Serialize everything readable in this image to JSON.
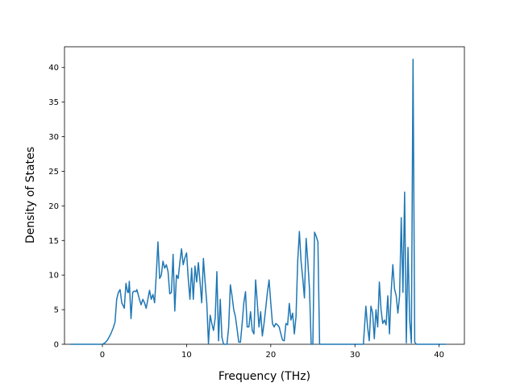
{
  "chart_data": {
    "type": "line",
    "title": "",
    "xlabel": "Frequency (THz)",
    "ylabel": "Density of States",
    "xlim": [
      -4.5,
      43
    ],
    "ylim": [
      0,
      43
    ],
    "x_ticks": [
      0,
      10,
      20,
      30,
      40
    ],
    "y_ticks": [
      0,
      5,
      10,
      15,
      20,
      25,
      30,
      35,
      40
    ],
    "grid": false,
    "legend": "none",
    "series": [
      {
        "color": "#1f77b4",
        "points": [
          [
            -3.8,
            0
          ],
          [
            0.0,
            0
          ],
          [
            0.3,
            0.2
          ],
          [
            0.6,
            0.6
          ],
          [
            1.0,
            1.5
          ],
          [
            1.3,
            2.4
          ],
          [
            1.5,
            3.2
          ],
          [
            1.7,
            6.5
          ],
          [
            1.9,
            7.5
          ],
          [
            2.1,
            7.9
          ],
          [
            2.3,
            6.0
          ],
          [
            2.5,
            5.5
          ],
          [
            2.6,
            5.2
          ],
          [
            2.8,
            8.8
          ],
          [
            3.0,
            7.5
          ],
          [
            3.1,
            7.5
          ],
          [
            3.2,
            9.1
          ],
          [
            3.4,
            3.7
          ],
          [
            3.6,
            7.5
          ],
          [
            3.8,
            7.7
          ],
          [
            4.0,
            7.6
          ],
          [
            4.1,
            7.9
          ],
          [
            4.4,
            6.5
          ],
          [
            4.6,
            5.7
          ],
          [
            4.8,
            6.5
          ],
          [
            5.0,
            6.0
          ],
          [
            5.2,
            5.2
          ],
          [
            5.4,
            6.5
          ],
          [
            5.6,
            7.8
          ],
          [
            5.8,
            6.5
          ],
          [
            6.0,
            7.2
          ],
          [
            6.2,
            6.0
          ],
          [
            6.4,
            10.0
          ],
          [
            6.6,
            14.8
          ],
          [
            6.8,
            9.5
          ],
          [
            7.0,
            10.0
          ],
          [
            7.2,
            12.0
          ],
          [
            7.4,
            11.0
          ],
          [
            7.6,
            11.5
          ],
          [
            7.8,
            10.5
          ],
          [
            8.0,
            7.3
          ],
          [
            8.2,
            7.5
          ],
          [
            8.4,
            13.0
          ],
          [
            8.6,
            4.8
          ],
          [
            8.8,
            10.0
          ],
          [
            9.0,
            9.5
          ],
          [
            9.2,
            11.8
          ],
          [
            9.4,
            13.8
          ],
          [
            9.6,
            11.5
          ],
          [
            9.8,
            12.5
          ],
          [
            10.0,
            13.2
          ],
          [
            10.2,
            9.5
          ],
          [
            10.4,
            6.5
          ],
          [
            10.6,
            11.0
          ],
          [
            10.8,
            6.5
          ],
          [
            11.0,
            11.3
          ],
          [
            11.2,
            9.0
          ],
          [
            11.4,
            11.8
          ],
          [
            11.6,
            9.0
          ],
          [
            11.8,
            6.0
          ],
          [
            12.0,
            12.4
          ],
          [
            12.2,
            9.0
          ],
          [
            12.4,
            6.0
          ],
          [
            12.6,
            0.1
          ],
          [
            12.8,
            4.2
          ],
          [
            13.0,
            3.0
          ],
          [
            13.2,
            2.0
          ],
          [
            13.4,
            3.8
          ],
          [
            13.6,
            10.5
          ],
          [
            13.8,
            0.5
          ],
          [
            14.0,
            6.5
          ],
          [
            14.2,
            1.0
          ],
          [
            14.4,
            0
          ],
          [
            14.8,
            0
          ],
          [
            15.0,
            2.5
          ],
          [
            15.2,
            8.6
          ],
          [
            15.4,
            7.0
          ],
          [
            15.6,
            5.0
          ],
          [
            15.8,
            4.0
          ],
          [
            16.0,
            2.2
          ],
          [
            16.2,
            0.3
          ],
          [
            16.4,
            0.3
          ],
          [
            16.6,
            3.0
          ],
          [
            16.8,
            6.0
          ],
          [
            17.0,
            7.6
          ],
          [
            17.2,
            2.5
          ],
          [
            17.4,
            2.5
          ],
          [
            17.6,
            4.7
          ],
          [
            17.8,
            2.0
          ],
          [
            18.0,
            1.5
          ],
          [
            18.2,
            9.3
          ],
          [
            18.4,
            6.0
          ],
          [
            18.6,
            2.5
          ],
          [
            18.8,
            4.7
          ],
          [
            19.0,
            1.2
          ],
          [
            19.2,
            3.0
          ],
          [
            19.4,
            5.2
          ],
          [
            19.6,
            7.5
          ],
          [
            19.8,
            9.3
          ],
          [
            20.0,
            6.0
          ],
          [
            20.2,
            3.0
          ],
          [
            20.4,
            2.5
          ],
          [
            20.6,
            3.0
          ],
          [
            20.8,
            2.8
          ],
          [
            21.0,
            2.5
          ],
          [
            21.2,
            1.5
          ],
          [
            21.4,
            0.6
          ],
          [
            21.6,
            0.5
          ],
          [
            21.8,
            3.0
          ],
          [
            22.0,
            2.8
          ],
          [
            22.2,
            5.9
          ],
          [
            22.4,
            3.5
          ],
          [
            22.6,
            4.5
          ],
          [
            22.8,
            1.5
          ],
          [
            23.0,
            4.0
          ],
          [
            23.2,
            12.0
          ],
          [
            23.4,
            16.3
          ],
          [
            23.6,
            12.0
          ],
          [
            23.8,
            9.5
          ],
          [
            24.0,
            6.7
          ],
          [
            24.2,
            15.3
          ],
          [
            24.4,
            12.0
          ],
          [
            24.6,
            8.0
          ],
          [
            24.8,
            0
          ],
          [
            25.0,
            0
          ],
          [
            25.2,
            16.2
          ],
          [
            25.4,
            15.6
          ],
          [
            25.6,
            14.8
          ],
          [
            25.8,
            0
          ],
          [
            31.0,
            0
          ],
          [
            31.3,
            5.5
          ],
          [
            31.5,
            2.5
          ],
          [
            31.7,
            0.5
          ],
          [
            31.9,
            5.5
          ],
          [
            32.1,
            4.5
          ],
          [
            32.3,
            0.8
          ],
          [
            32.5,
            5.0
          ],
          [
            32.7,
            2.5
          ],
          [
            32.9,
            9.0
          ],
          [
            33.1,
            5.0
          ],
          [
            33.3,
            3.0
          ],
          [
            33.5,
            3.5
          ],
          [
            33.7,
            2.8
          ],
          [
            33.9,
            7.0
          ],
          [
            34.1,
            1.5
          ],
          [
            34.3,
            7.5
          ],
          [
            34.5,
            11.5
          ],
          [
            34.7,
            8.0
          ],
          [
            34.9,
            7.0
          ],
          [
            35.1,
            4.5
          ],
          [
            35.3,
            7.0
          ],
          [
            35.5,
            18.3
          ],
          [
            35.7,
            7.5
          ],
          [
            35.9,
            22.0
          ],
          [
            36.1,
            0.2
          ],
          [
            36.3,
            14.0
          ],
          [
            36.5,
            3.5
          ],
          [
            36.7,
            0.2
          ],
          [
            36.9,
            41.2
          ],
          [
            37.1,
            0.3
          ],
          [
            37.3,
            0
          ],
          [
            40.8,
            0
          ]
        ]
      }
    ]
  }
}
